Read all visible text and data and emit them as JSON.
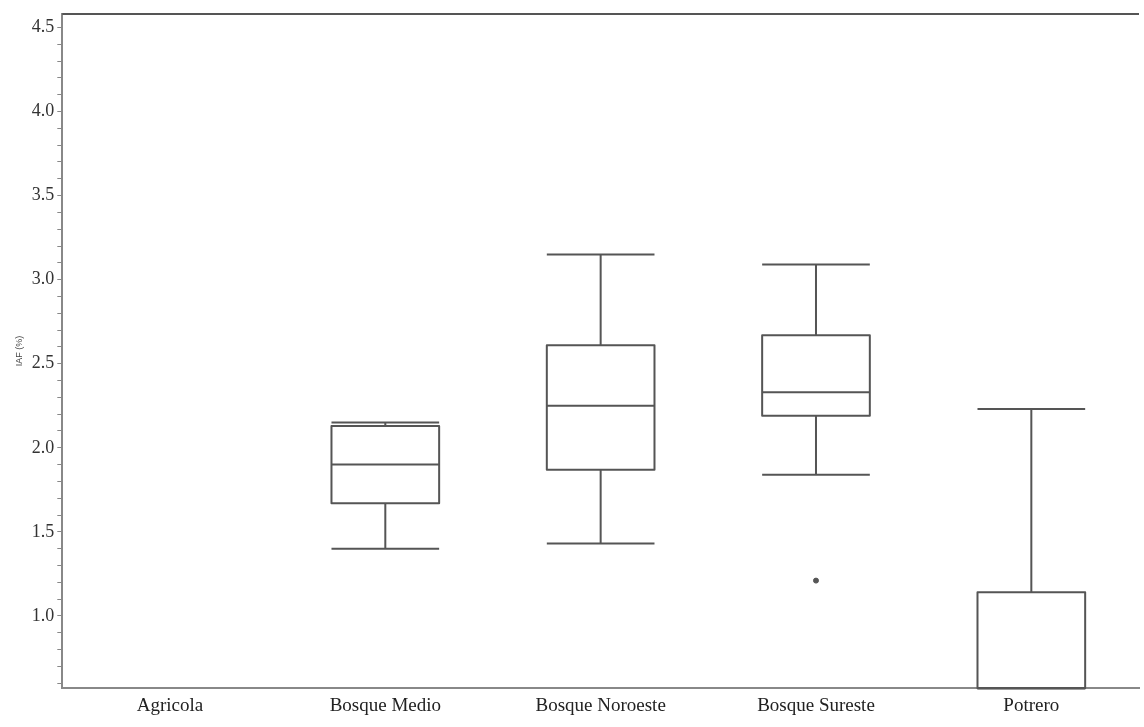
{
  "chart_data": {
    "type": "box",
    "ylabel": "IAF (%)",
    "categories": [
      "Agricola",
      "Bosque Medio",
      "Bosque Noroeste",
      "Bosque Sureste",
      "Potrero"
    ],
    "boxes": [
      null,
      {
        "low": 1.4,
        "q1": 1.67,
        "median": 1.9,
        "q3": 2.13,
        "high": 2.15
      },
      {
        "low": 1.43,
        "q1": 1.87,
        "median": 2.25,
        "q3": 2.61,
        "high": 3.15
      },
      {
        "low": 1.84,
        "q1": 2.19,
        "median": 2.33,
        "q3": 2.67,
        "high": 3.09,
        "outliers": [
          1.21
        ]
      },
      {
        "low": 0.57,
        "q1": 0.57,
        "median": 0.57,
        "q3": 1.14,
        "high": 2.23
      }
    ],
    "color": "#555555",
    "ylim": [
      0.57,
      4.58
    ],
    "yticks": [
      {
        "value": 0.6,
        "label": null
      },
      {
        "value": 0.7,
        "label": null
      },
      {
        "value": 0.8,
        "label": null
      },
      {
        "value": 0.9,
        "label": null
      },
      {
        "value": 1.0,
        "label": "1.0"
      },
      {
        "value": 1.1,
        "label": null
      },
      {
        "value": 1.2,
        "label": null
      },
      {
        "value": 1.3,
        "label": null
      },
      {
        "value": 1.4,
        "label": null
      },
      {
        "value": 1.5,
        "label": "1.5"
      },
      {
        "value": 1.6,
        "label": null
      },
      {
        "value": 1.7,
        "label": null
      },
      {
        "value": 1.8,
        "label": null
      },
      {
        "value": 1.9,
        "label": null
      },
      {
        "value": 2.0,
        "label": "2.0"
      },
      {
        "value": 2.1,
        "label": null
      },
      {
        "value": 2.2,
        "label": null
      },
      {
        "value": 2.3,
        "label": null
      },
      {
        "value": 2.4,
        "label": null
      },
      {
        "value": 2.5,
        "label": "2.5"
      },
      {
        "value": 2.6,
        "label": null
      },
      {
        "value": 2.7,
        "label": null
      },
      {
        "value": 2.8,
        "label": null
      },
      {
        "value": 2.9,
        "label": null
      },
      {
        "value": 3.0,
        "label": "3.0"
      },
      {
        "value": 3.1,
        "label": null
      },
      {
        "value": 3.2,
        "label": null
      },
      {
        "value": 3.3,
        "label": null
      },
      {
        "value": 3.4,
        "label": null
      },
      {
        "value": 3.5,
        "label": "3.5"
      },
      {
        "value": 3.6,
        "label": null
      },
      {
        "value": 3.7,
        "label": null
      },
      {
        "value": 3.8,
        "label": null
      },
      {
        "value": 3.9,
        "label": null
      },
      {
        "value": 4.0,
        "label": "4.0"
      },
      {
        "value": 4.1,
        "label": null
      },
      {
        "value": 4.2,
        "label": null
      },
      {
        "value": 4.3,
        "label": null
      },
      {
        "value": 4.4,
        "label": null
      },
      {
        "value": 4.5,
        "label": "4.5"
      }
    ],
    "grid": false,
    "legend": false
  }
}
